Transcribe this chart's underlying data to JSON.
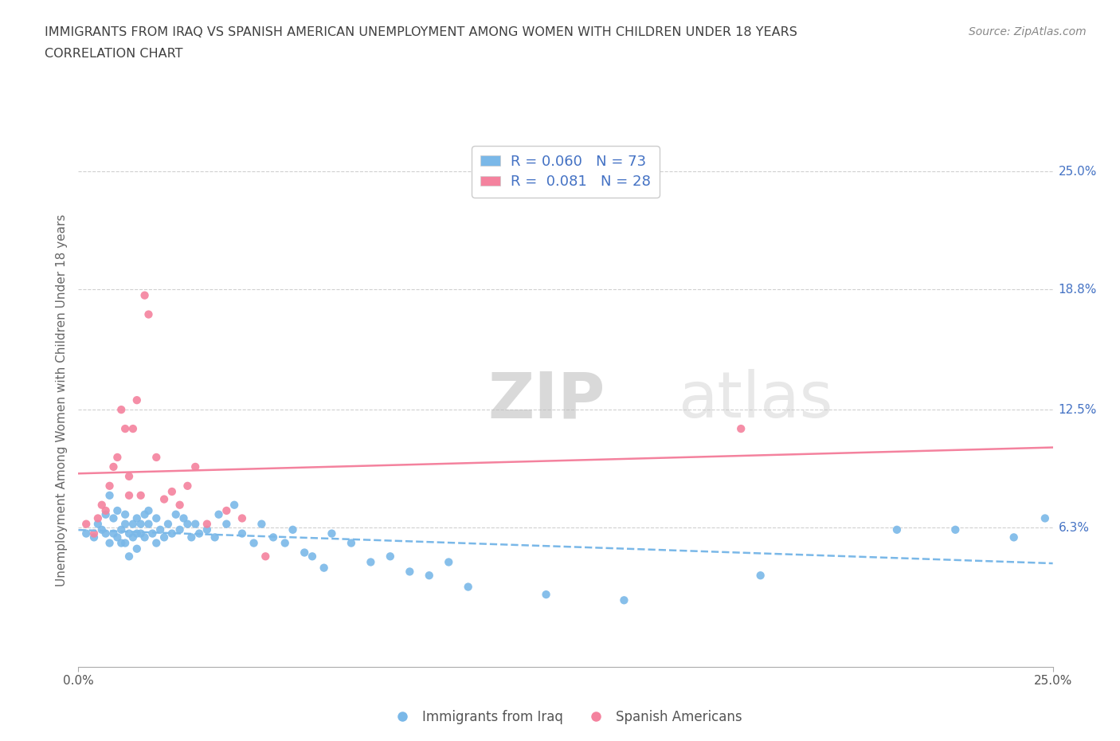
{
  "title_line1": "IMMIGRANTS FROM IRAQ VS SPANISH AMERICAN UNEMPLOYMENT AMONG WOMEN WITH CHILDREN UNDER 18 YEARS",
  "title_line2": "CORRELATION CHART",
  "source_text": "Source: ZipAtlas.com",
  "ylabel": "Unemployment Among Women with Children Under 18 years",
  "xlim": [
    0.0,
    0.25
  ],
  "ylim": [
    -0.01,
    0.27
  ],
  "ytick_values": [
    0.063,
    0.125,
    0.188,
    0.25
  ],
  "ytick_labels": [
    "6.3%",
    "12.5%",
    "18.8%",
    "25.0%"
  ],
  "xtick_values": [
    0.0,
    0.25
  ],
  "xtick_labels": [
    "0.0%",
    "25.0%"
  ],
  "watermark_zip": "ZIP",
  "watermark_atlas": "atlas",
  "iraq_color": "#7ab8e8",
  "iraq_line_color": "#7ab8e8",
  "spanish_color": "#f4829e",
  "spanish_line_color": "#f4829e",
  "right_label_color": "#4472c4",
  "title_color": "#404040",
  "source_color": "#888888",
  "ylabel_color": "#666666",
  "grid_color": "#d0d0d0",
  "legend_text_color": "#4472c4",
  "bottom_legend_color": "#555555",
  "iraq_scatter_x": [
    0.002,
    0.004,
    0.005,
    0.006,
    0.007,
    0.007,
    0.008,
    0.008,
    0.009,
    0.009,
    0.01,
    0.01,
    0.011,
    0.011,
    0.012,
    0.012,
    0.012,
    0.013,
    0.013,
    0.014,
    0.014,
    0.015,
    0.015,
    0.015,
    0.016,
    0.016,
    0.017,
    0.017,
    0.018,
    0.018,
    0.019,
    0.02,
    0.02,
    0.021,
    0.022,
    0.023,
    0.024,
    0.025,
    0.026,
    0.027,
    0.028,
    0.029,
    0.03,
    0.031,
    0.033,
    0.035,
    0.036,
    0.038,
    0.04,
    0.042,
    0.045,
    0.047,
    0.05,
    0.053,
    0.055,
    0.058,
    0.06,
    0.063,
    0.065,
    0.07,
    0.075,
    0.08,
    0.085,
    0.09,
    0.095,
    0.1,
    0.12,
    0.14,
    0.175,
    0.21,
    0.225,
    0.24,
    0.248
  ],
  "iraq_scatter_y": [
    0.06,
    0.058,
    0.065,
    0.062,
    0.06,
    0.07,
    0.055,
    0.08,
    0.06,
    0.068,
    0.058,
    0.072,
    0.062,
    0.055,
    0.065,
    0.07,
    0.055,
    0.06,
    0.048,
    0.065,
    0.058,
    0.068,
    0.06,
    0.052,
    0.065,
    0.06,
    0.07,
    0.058,
    0.065,
    0.072,
    0.06,
    0.068,
    0.055,
    0.062,
    0.058,
    0.065,
    0.06,
    0.07,
    0.062,
    0.068,
    0.065,
    0.058,
    0.065,
    0.06,
    0.062,
    0.058,
    0.07,
    0.065,
    0.075,
    0.06,
    0.055,
    0.065,
    0.058,
    0.055,
    0.062,
    0.05,
    0.048,
    0.042,
    0.06,
    0.055,
    0.045,
    0.048,
    0.04,
    0.038,
    0.045,
    0.032,
    0.028,
    0.025,
    0.038,
    0.062,
    0.062,
    0.058,
    0.068
  ],
  "spanish_scatter_x": [
    0.002,
    0.004,
    0.005,
    0.006,
    0.007,
    0.008,
    0.009,
    0.01,
    0.011,
    0.012,
    0.013,
    0.013,
    0.014,
    0.015,
    0.016,
    0.017,
    0.018,
    0.02,
    0.022,
    0.024,
    0.026,
    0.028,
    0.03,
    0.033,
    0.038,
    0.042,
    0.048,
    0.17
  ],
  "spanish_scatter_y": [
    0.065,
    0.06,
    0.068,
    0.075,
    0.072,
    0.085,
    0.095,
    0.1,
    0.125,
    0.115,
    0.09,
    0.08,
    0.115,
    0.13,
    0.08,
    0.185,
    0.175,
    0.1,
    0.078,
    0.082,
    0.075,
    0.085,
    0.095,
    0.065,
    0.072,
    0.068,
    0.048,
    0.115
  ]
}
